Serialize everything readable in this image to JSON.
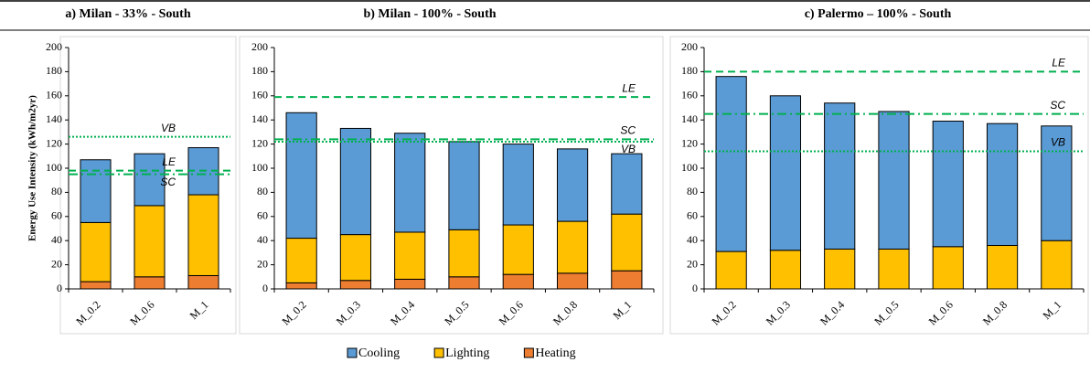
{
  "chart_data": [
    {
      "type": "bar",
      "stacked": true,
      "title": "a) Milan - 33% - South",
      "y_label": "Energy Use Intensity (kWh/m2yr)",
      "categories": [
        "M_0.2",
        "M_0.6",
        "M_1"
      ],
      "series": [
        {
          "name": "Cooling",
          "color": "#5b9bd5",
          "values": [
            52,
            43,
            39
          ]
        },
        {
          "name": "Lighting",
          "color": "#ffc000",
          "values": [
            49,
            59,
            67
          ]
        },
        {
          "name": "Heating",
          "color": "#ed7d31",
          "values": [
            6,
            10,
            11
          ]
        }
      ],
      "reference_lines": [
        {
          "label": "VB",
          "value": 126,
          "style": "dotted",
          "color": "#00b050"
        },
        {
          "label": "LE",
          "value": 98,
          "style": "dashed",
          "color": "#00b050"
        },
        {
          "label": "SC",
          "value": 95,
          "style": "dash-dot",
          "color": "#00b050"
        }
      ],
      "ylim": [
        0,
        200
      ],
      "yticks": [
        0,
        20,
        40,
        60,
        80,
        100,
        120,
        140,
        160,
        180,
        200
      ],
      "grid": false
    },
    {
      "type": "bar",
      "stacked": true,
      "title": "b) Milan - 100% - South",
      "categories": [
        "M_0.2",
        "M_0.3",
        "M_0.4",
        "M_0.5",
        "M_0.6",
        "M_0.8",
        "M_1"
      ],
      "series": [
        {
          "name": "Cooling",
          "color": "#5b9bd5",
          "values": [
            104,
            88,
            82,
            73,
            67,
            60,
            50
          ]
        },
        {
          "name": "Lighting",
          "color": "#ffc000",
          "values": [
            37,
            38,
            39,
            39,
            41,
            43,
            47
          ]
        },
        {
          "name": "Heating",
          "color": "#ed7d31",
          "values": [
            5,
            7,
            8,
            10,
            12,
            13,
            15
          ]
        }
      ],
      "reference_lines": [
        {
          "label": "LE",
          "value": 159,
          "style": "dashed",
          "color": "#00b050"
        },
        {
          "label": "SC",
          "value": 124,
          "style": "dash-dot",
          "color": "#00b050"
        },
        {
          "label": "VB",
          "value": 122,
          "style": "dotted",
          "color": "#00b050"
        }
      ],
      "ylim": [
        0,
        200
      ],
      "yticks": [
        0,
        20,
        40,
        60,
        80,
        100,
        120,
        140,
        160,
        180,
        200
      ],
      "grid": false
    },
    {
      "type": "bar",
      "stacked": true,
      "title": "c) Palermo – 100% - South",
      "categories": [
        "M_0.2",
        "M_0.3",
        "M_0.4",
        "M_0.5",
        "M_0.6",
        "M_0.8",
        "M_1"
      ],
      "series": [
        {
          "name": "Cooling",
          "color": "#5b9bd5",
          "values": [
            145,
            128,
            121,
            114,
            104,
            101,
            95
          ]
        },
        {
          "name": "Lighting",
          "color": "#ffc000",
          "values": [
            31,
            32,
            33,
            33,
            35,
            36,
            40
          ]
        }
      ],
      "reference_lines": [
        {
          "label": "LE",
          "value": 180,
          "style": "dashed",
          "color": "#00b050"
        },
        {
          "label": "SC",
          "value": 145,
          "style": "dash-dot",
          "color": "#00b050"
        },
        {
          "label": "VB",
          "value": 114,
          "style": "dotted",
          "color": "#00b050"
        }
      ],
      "ylim": [
        0,
        200
      ],
      "yticks": [
        0,
        20,
        40,
        60,
        80,
        100,
        120,
        140,
        160,
        180,
        200
      ],
      "grid": false
    }
  ]
}
